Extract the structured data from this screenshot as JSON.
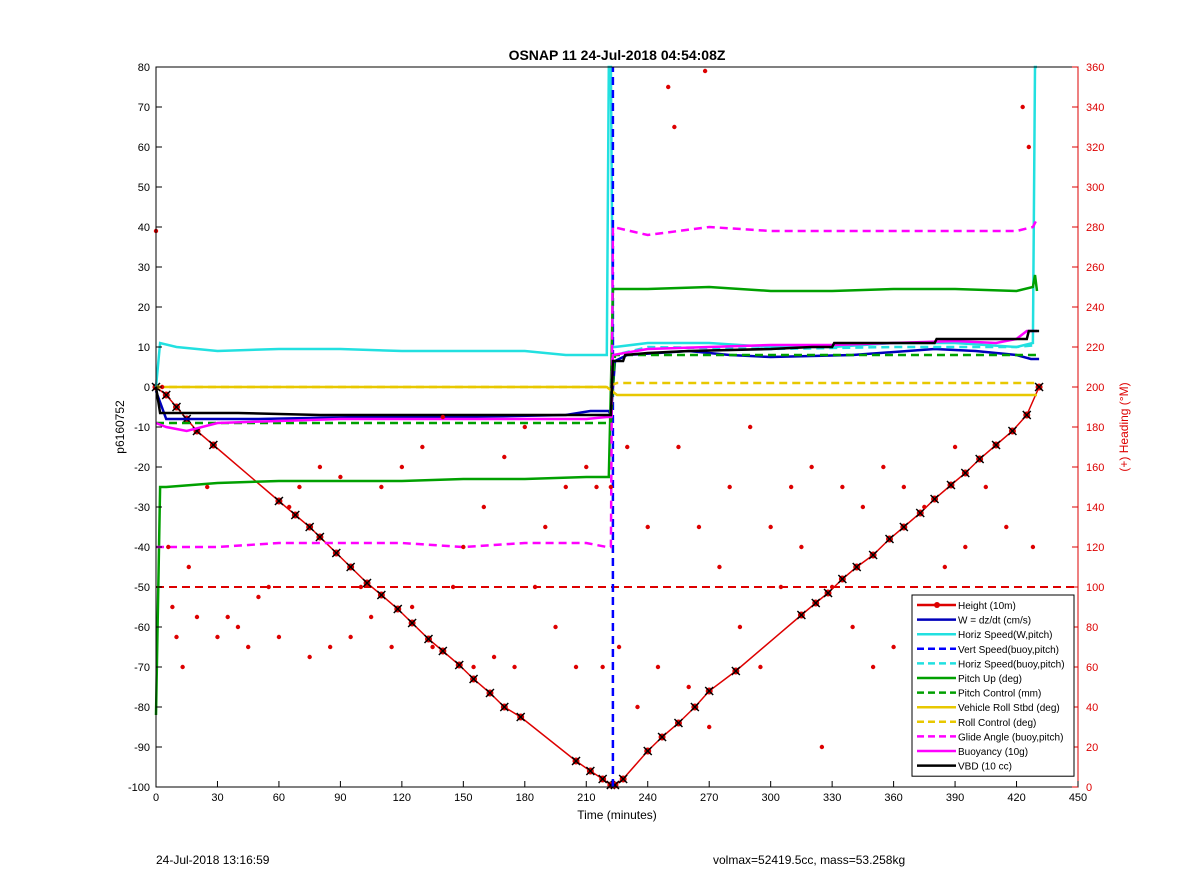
{
  "chart_data": {
    "type": "line",
    "title": "OSNAP 11 24-Jul-2018 04:54:08Z",
    "xlabel": "Time (minutes)",
    "ylabel": "p6160752",
    "y2label": "(+) Heading (°M)",
    "xlim": [
      0,
      450
    ],
    "ylim": [
      -100,
      80
    ],
    "y2lim": [
      0,
      360
    ],
    "xticks": [
      0,
      30,
      60,
      90,
      120,
      150,
      180,
      210,
      240,
      270,
      300,
      330,
      360,
      390,
      420,
      450
    ],
    "yticks": [
      -100,
      -90,
      -80,
      -70,
      -60,
      -50,
      -40,
      -30,
      -20,
      -10,
      0,
      10,
      20,
      30,
      40,
      50,
      60,
      70,
      80
    ],
    "y2ticks": [
      0,
      20,
      40,
      60,
      80,
      100,
      120,
      140,
      160,
      180,
      200,
      220,
      240,
      260,
      280,
      300,
      320,
      340,
      360
    ],
    "grid": false,
    "legend_placement": "bottom-right",
    "series": [
      {
        "name": "Height (10m)",
        "color": "#dd0000",
        "style": "solid-marker",
        "x": [
          0,
          5,
          10,
          15,
          20,
          28,
          60,
          68,
          75,
          80,
          88,
          95,
          103,
          110,
          118,
          125,
          133,
          140,
          148,
          155,
          163,
          170,
          178,
          205,
          212,
          218,
          222,
          224,
          228,
          240,
          247,
          255,
          263,
          270,
          283,
          315,
          322,
          328,
          335,
          342,
          350,
          358,
          365,
          373,
          380,
          388,
          395,
          402,
          410,
          418,
          425,
          431
        ],
        "y": [
          0,
          -2,
          -5,
          -8,
          -11,
          -14.5,
          -28.5,
          -32,
          -35,
          -37.5,
          -41.5,
          -45,
          -49,
          -52,
          -55.5,
          -59,
          -63,
          -66,
          -69.5,
          -73,
          -76.5,
          -80,
          -82.5,
          -93.5,
          -96,
          -98,
          -99.5,
          -99.5,
          -98,
          -91,
          -87.5,
          -84,
          -80,
          -76,
          -71,
          -57,
          -54,
          -51.5,
          -48,
          -45,
          -42,
          -38,
          -35,
          -31.5,
          -28,
          -24.5,
          -21.5,
          -18,
          -14.5,
          -11,
          -7,
          0
        ]
      },
      {
        "name": "W = dz/dt (cm/s)",
        "color": "#0000bb",
        "style": "solid",
        "x": [
          0,
          5,
          50,
          100,
          150,
          200,
          212,
          221,
          222,
          224,
          230,
          260,
          280,
          300,
          340,
          380,
          400,
          420,
          427,
          431
        ],
        "y": [
          -1,
          -8,
          -8,
          -7.5,
          -7.5,
          -7,
          -6,
          -6,
          -7,
          6.5,
          8,
          9,
          8,
          7.5,
          8,
          9.5,
          9,
          8,
          7,
          7
        ]
      },
      {
        "name": "Horiz Speed(W,pitch)",
        "color": "#22e0e0",
        "style": "solid",
        "x": [
          0,
          2,
          10,
          30,
          60,
          90,
          120,
          150,
          180,
          200,
          220,
          221,
          222,
          223,
          224,
          240,
          270,
          300,
          330,
          360,
          390,
          420,
          428,
          429,
          430
        ],
        "y": [
          0,
          11,
          10,
          9,
          9.5,
          9.5,
          9,
          9,
          9,
          8,
          8,
          80,
          80,
          10,
          10,
          11,
          11,
          10,
          10,
          11,
          11,
          10,
          11,
          80,
          80
        ]
      },
      {
        "name": "Vert Speed(buoy,pitch)",
        "color": "#0000ff",
        "style": "dashed",
        "x": [
          223,
          223
        ],
        "y": [
          -100,
          80
        ]
      },
      {
        "name": "Horiz Speed(buoy,pitch)",
        "color": "#22e0e0",
        "style": "dashed",
        "x": [
          222,
          224,
          240,
          300,
          360,
          420,
          430
        ],
        "y": [
          7,
          8,
          10,
          9.5,
          10,
          10,
          10.5
        ]
      },
      {
        "name": "Pitch Up (deg)",
        "color": "#00a000",
        "style": "solid",
        "x": [
          0,
          2,
          5,
          30,
          60,
          90,
          120,
          150,
          180,
          210,
          221,
          222,
          223,
          224,
          240,
          270,
          300,
          330,
          360,
          390,
          420,
          428,
          429,
          430
        ],
        "y": [
          -82,
          -25,
          -25,
          -24,
          -23.5,
          -23.5,
          -23.5,
          -23,
          -23,
          -22.5,
          -22.5,
          0,
          24.5,
          24.5,
          24.5,
          25,
          24,
          24,
          24.5,
          24.5,
          24,
          25,
          28,
          24
        ]
      },
      {
        "name": "Pitch Control (mm)",
        "color": "#00a000",
        "style": "dashed",
        "x": [
          0,
          222,
          223,
          224,
          430
        ],
        "y": [
          -9,
          -9,
          0,
          8,
          8
        ]
      },
      {
        "name": "Vehicle Roll Stbd (deg)",
        "color": "#e8c800",
        "style": "solid",
        "x": [
          0,
          30,
          60,
          90,
          120,
          150,
          180,
          210,
          220,
          225,
          240,
          270,
          300,
          330,
          360,
          390,
          420,
          430
        ],
        "y": [
          0,
          0,
          0,
          0,
          0,
          0,
          0,
          0,
          0,
          -2,
          -2,
          -2,
          -2,
          -2,
          -2,
          -2,
          -2,
          -2
        ]
      },
      {
        "name": "Roll Control (deg)",
        "color": "#e8c800",
        "style": "dashed",
        "x": [
          0,
          220,
          225,
          430
        ],
        "y": [
          0,
          0,
          1,
          1
        ]
      },
      {
        "name": "Glide Angle (buoy,pitch)",
        "color": "#ff00ff",
        "style": "dashed",
        "x": [
          0,
          30,
          60,
          90,
          120,
          150,
          180,
          210,
          220,
          222,
          223,
          240,
          270,
          300,
          330,
          360,
          390,
          420,
          428,
          430
        ],
        "y": [
          -40,
          -40,
          -39,
          -39,
          -39,
          -40,
          -39,
          -39,
          -40,
          -40,
          40,
          38,
          40,
          39,
          39,
          39,
          39,
          39,
          40,
          42
        ]
      },
      {
        "name": "Buoyancy (10g)",
        "color": "#ff00ff",
        "style": "solid",
        "x": [
          0,
          5,
          15,
          30,
          60,
          90,
          120,
          150,
          180,
          210,
          220,
          222,
          223,
          240,
          270,
          300,
          330,
          360,
          390,
          410,
          420,
          425,
          430
        ],
        "y": [
          -9,
          -10,
          -11,
          -9,
          -8.5,
          -8,
          -8,
          -8,
          -8,
          -8,
          -7.5,
          -7.5,
          8,
          9.5,
          10,
          10.5,
          10.5,
          11,
          11.5,
          11,
          12,
          14,
          14
        ]
      },
      {
        "name": "VBD (10 cc)",
        "color": "#000000",
        "style": "solid",
        "x": [
          0,
          2,
          5,
          40,
          80,
          120,
          160,
          200,
          221,
          222,
          223,
          228,
          229,
          240,
          260,
          300,
          320,
          330,
          331,
          380,
          381,
          425,
          426,
          431
        ],
        "y": [
          0,
          -6.5,
          -6.5,
          -6.5,
          -7,
          -7,
          -7,
          -7,
          -7,
          -7,
          6.5,
          6.5,
          8,
          8.5,
          9,
          9.5,
          10,
          10,
          11,
          11,
          12,
          12,
          14,
          14
        ]
      },
      {
        "name": "Heading",
        "color": "#dd0000",
        "style": "dots",
        "axis": "right",
        "x": [
          0,
          3,
          6,
          8,
          10,
          13,
          16,
          20,
          25,
          30,
          35,
          40,
          45,
          50,
          55,
          60,
          65,
          70,
          75,
          80,
          85,
          90,
          95,
          100,
          105,
          110,
          115,
          120,
          125,
          130,
          135,
          140,
          145,
          150,
          155,
          160,
          165,
          170,
          175,
          180,
          185,
          190,
          195,
          200,
          205,
          210,
          215,
          218,
          222,
          226,
          230,
          235,
          240,
          245,
          250,
          253,
          255,
          260,
          265,
          268,
          270,
          275,
          280,
          285,
          290,
          295,
          300,
          305,
          310,
          315,
          320,
          325,
          330,
          335,
          340,
          345,
          350,
          355,
          360,
          365,
          370,
          375,
          380,
          385,
          390,
          395,
          400,
          405,
          410,
          415,
          420,
          423,
          426,
          428
        ],
        "y": [
          278,
          200,
          120,
          90,
          75,
          60,
          110,
          85,
          150,
          75,
          85,
          80,
          70,
          95,
          100,
          75,
          140,
          150,
          65,
          160,
          70,
          155,
          75,
          100,
          85,
          150,
          70,
          160,
          90,
          170,
          70,
          185,
          100,
          120,
          60,
          140,
          65,
          165,
          60,
          180,
          100,
          130,
          80,
          150,
          60,
          160,
          150,
          60,
          150,
          70,
          170,
          40,
          130,
          60,
          350,
          330,
          170,
          50,
          130,
          358,
          30,
          110,
          150,
          80,
          180,
          60,
          130,
          100,
          150,
          120,
          160,
          20,
          100,
          150,
          80,
          140,
          60,
          160,
          70,
          150,
          90,
          140,
          50,
          110,
          170,
          120,
          80,
          150,
          70,
          130,
          20,
          340,
          320,
          120
        ]
      }
    ]
  },
  "footer": {
    "timestamp": "24-Jul-2018 13:16:59",
    "info": "volmax=52419.5cc, mass=53.258kg"
  }
}
